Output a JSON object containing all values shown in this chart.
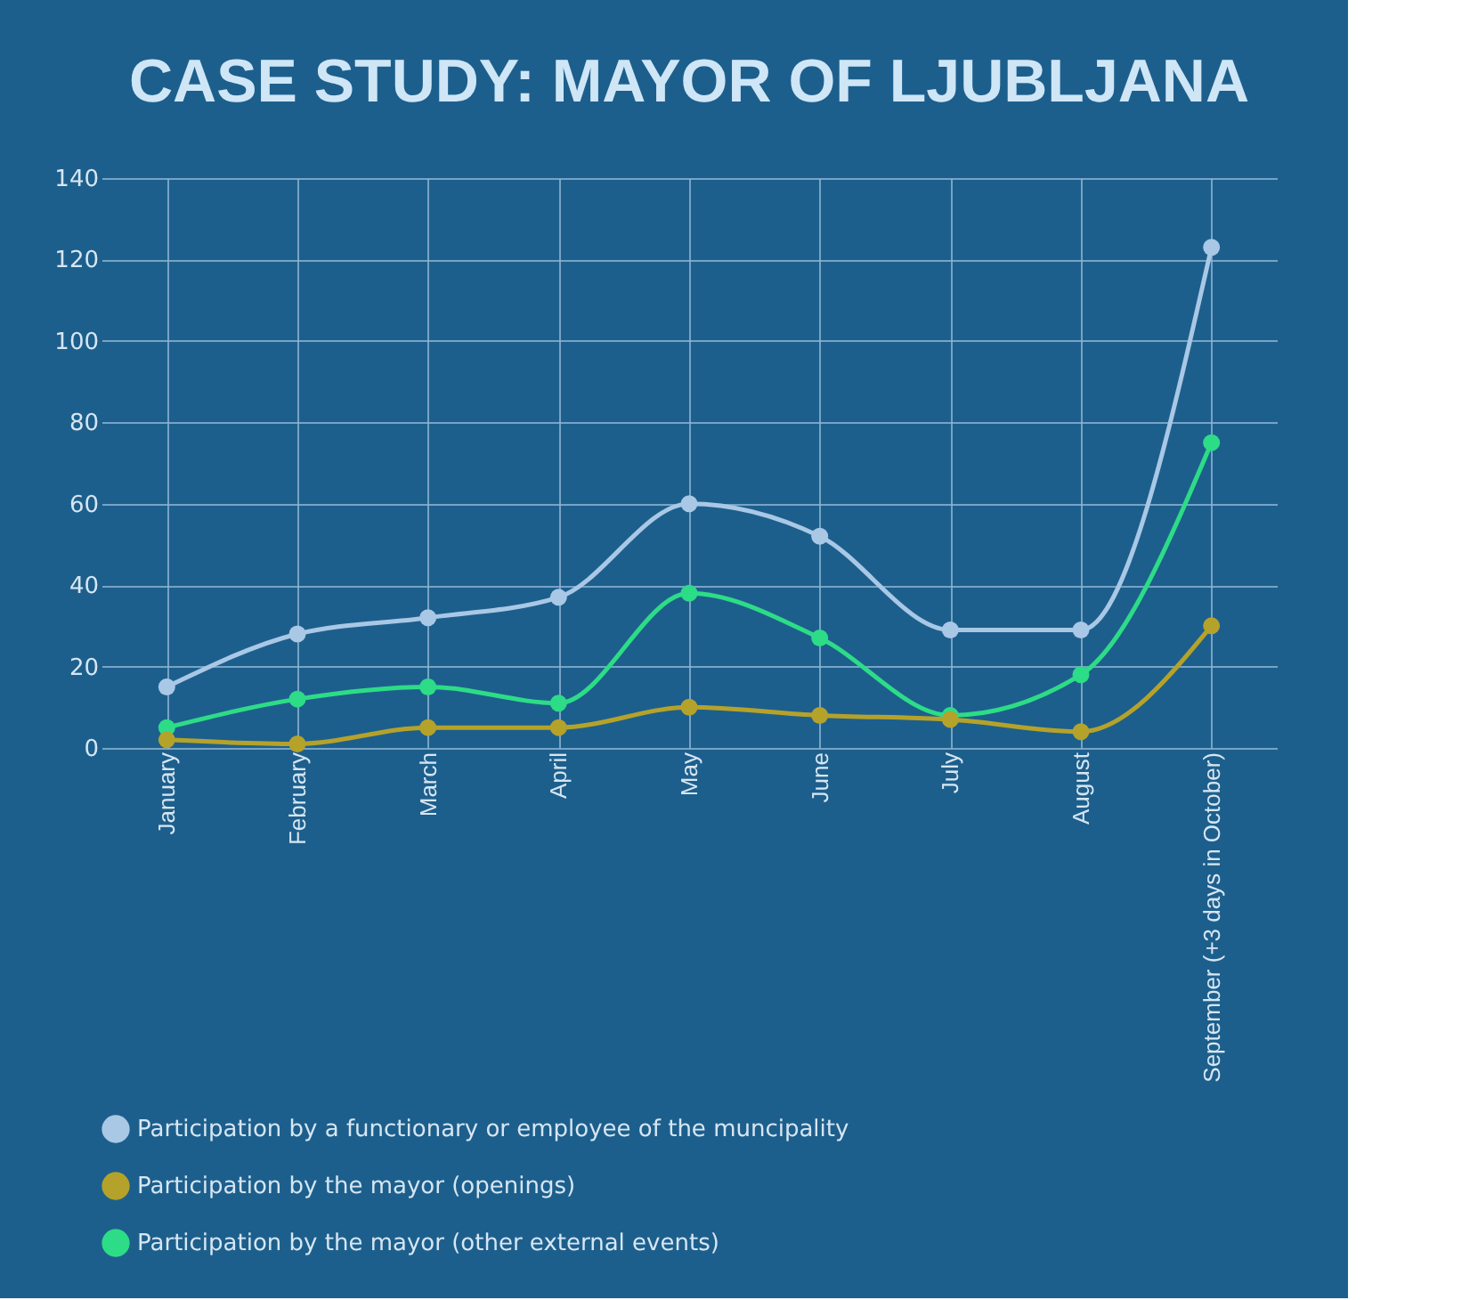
{
  "chart_data": {
    "type": "line",
    "title": "CASE STUDY: MAYOR OF LJUBLJANA",
    "categories": [
      "January",
      "February",
      "March",
      "April",
      "May",
      "June",
      "July",
      "August",
      "September (+3 days in October)"
    ],
    "series": [
      {
        "name": "Participation by a functionary or employee of the muncipality",
        "color": "#a9c8e6",
        "values": [
          15,
          28,
          32,
          37,
          60,
          52,
          29,
          29,
          123
        ]
      },
      {
        "name": "Participation by the mayor (openings)",
        "color": "#b5a22a",
        "values": [
          2,
          1,
          5,
          5,
          10,
          8,
          7,
          4,
          30
        ]
      },
      {
        "name": "Participation by the mayor (other external events)",
        "color": "#2ddc86",
        "values": [
          5,
          12,
          15,
          11,
          38,
          27,
          8,
          18,
          75
        ]
      }
    ],
    "ylim": [
      0,
      140
    ],
    "yticks": [
      0,
      20,
      40,
      60,
      80,
      100,
      120,
      140
    ],
    "grid": true,
    "legend": "bottom",
    "marker": "circle",
    "line_style": "solid"
  }
}
